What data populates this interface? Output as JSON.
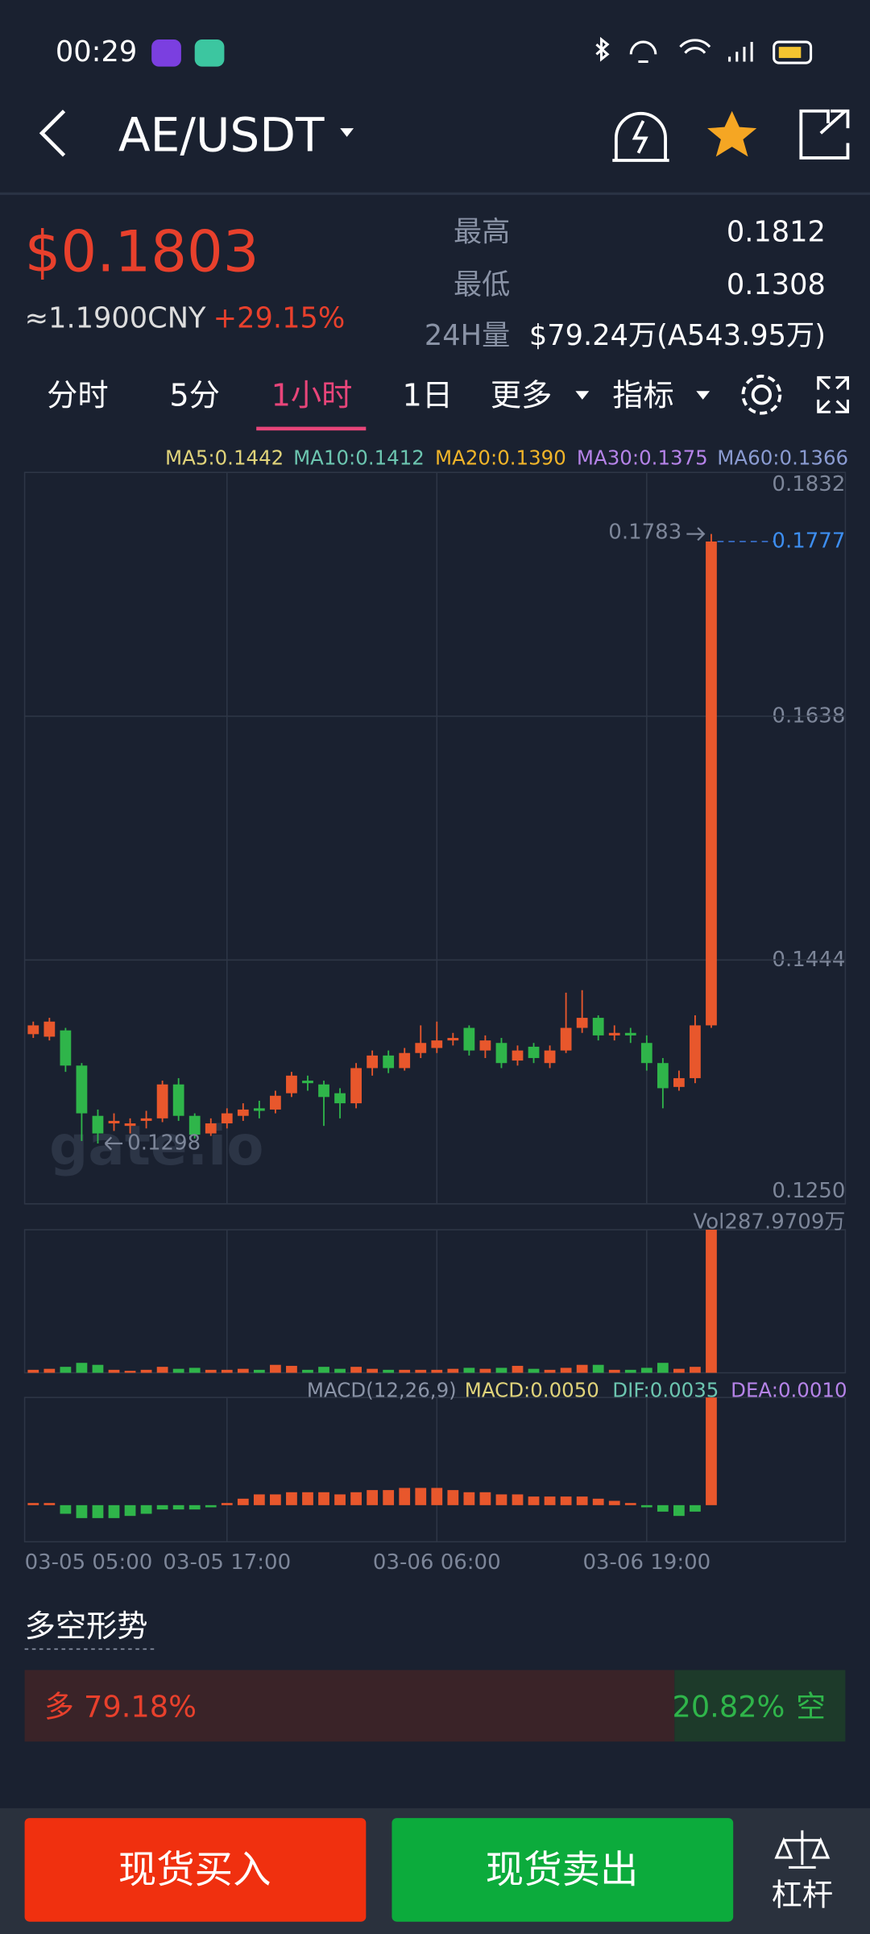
{
  "status_bar": {
    "time": "00:29"
  },
  "header": {
    "pair": "AE/USDT"
  },
  "ticker": {
    "price": "$0.1803",
    "cny": "≈1.1900CNY",
    "change": "+29.15%",
    "high_label": "最高",
    "high": "0.1812",
    "low_label": "最低",
    "low": "0.1308",
    "vol_label": "24H量",
    "vol": "$79.24万(A543.95万)"
  },
  "tabs": [
    "分时",
    "5分",
    "1小时",
    "1日",
    "更多",
    "指标"
  ],
  "chart_data": {
    "type": "candlestick",
    "ma_labels": [
      {
        "text": "MA5:0.1442",
        "color": "#e0d37a"
      },
      {
        "text": "MA10:0.1412",
        "color": "#6cc5b0"
      },
      {
        "text": "MA20:0.1390",
        "color": "#f0b429"
      },
      {
        "text": "MA30:0.1375",
        "color": "#b583e8"
      },
      {
        "text": "MA60:0.1366",
        "color": "#8a9bd1"
      }
    ],
    "categories": [
      "03-05 05:00",
      null,
      null,
      null,
      null,
      null,
      null,
      null,
      null,
      null,
      null,
      null,
      "03-05 17:00",
      null,
      null,
      null,
      null,
      null,
      null,
      null,
      null,
      null,
      null,
      null,
      null,
      "03-06 06:00",
      null,
      null,
      null,
      null,
      null,
      null,
      null,
      null,
      null,
      null,
      null,
      null,
      "03-06 19:00",
      null,
      null,
      null,
      null
    ],
    "open": [
      0.1385,
      0.1383,
      0.1388,
      0.136,
      0.132,
      0.1314,
      0.1312,
      0.1316,
      0.1318,
      0.1345,
      0.132,
      0.1306,
      0.1314,
      0.132,
      0.1326,
      0.1325,
      0.1338,
      0.1348,
      0.1345,
      0.1338,
      0.133,
      0.1358,
      0.1368,
      0.1358,
      0.137,
      0.1374,
      0.138,
      0.139,
      0.1372,
      0.1378,
      0.1364,
      0.1375,
      0.1362,
      0.1372,
      0.139,
      0.1398,
      0.1384,
      0.1386,
      0.1378,
      0.1362,
      0.1343,
      0.135,
      0.1392
    ],
    "high": [
      0.1395,
      0.1398,
      0.139,
      0.1362,
      0.1325,
      0.1322,
      0.1318,
      0.1324,
      0.1348,
      0.135,
      0.1322,
      0.1318,
      0.1326,
      0.133,
      0.1332,
      0.134,
      0.1355,
      0.1352,
      0.1348,
      0.1342,
      0.1362,
      0.1372,
      0.1372,
      0.1374,
      0.1392,
      0.1395,
      0.1386,
      0.1392,
      0.1384,
      0.1382,
      0.1376,
      0.1378,
      0.1376,
      0.1418,
      0.142,
      0.14,
      0.1392,
      0.139,
      0.1384,
      0.1366,
      0.1356,
      0.14,
      0.1783
    ],
    "low": [
      0.1382,
      0.138,
      0.1355,
      0.13,
      0.1298,
      0.1308,
      0.1306,
      0.131,
      0.1315,
      0.1316,
      0.1302,
      0.1304,
      0.131,
      0.1316,
      0.1318,
      0.1322,
      0.1335,
      0.134,
      0.1312,
      0.1318,
      0.1326,
      0.1352,
      0.1354,
      0.1356,
      0.1366,
      0.137,
      0.1376,
      0.1368,
      0.1366,
      0.1358,
      0.136,
      0.1362,
      0.1358,
      0.137,
      0.1386,
      0.138,
      0.138,
      0.1378,
      0.1356,
      0.1326,
      0.134,
      0.1346,
      0.139
    ],
    "close": [
      0.1392,
      0.1395,
      0.136,
      0.1322,
      0.1306,
      0.1316,
      0.1314,
      0.1318,
      0.1345,
      0.132,
      0.1305,
      0.1314,
      0.1322,
      0.1325,
      0.1324,
      0.1336,
      0.1352,
      0.1346,
      0.1335,
      0.133,
      0.1358,
      0.1368,
      0.1358,
      0.137,
      0.1378,
      0.138,
      0.1382,
      0.1372,
      0.138,
      0.1362,
      0.1372,
      0.1366,
      0.1372,
      0.139,
      0.1398,
      0.1384,
      0.1386,
      0.1384,
      0.1362,
      0.1342,
      0.135,
      0.1392,
      0.1777
    ],
    "up_color": "#e8572c",
    "down_color": "#2fb54a",
    "ylim": [
      0.125,
      0.1832
    ],
    "yticks": [
      0.1832,
      0.1638,
      0.1444,
      {
        "value": 0.125,
        "label": "0.1250"
      }
    ],
    "grid": true,
    "high_annotation": 0.1783,
    "low_annotation": 0.1298,
    "last_price": 0.1777,
    "watermark": "gate.io",
    "volume": {
      "label": "Vol287.9709万",
      "ylim": [
        0,
        287.9709
      ],
      "values": [
        6,
        8,
        12,
        20,
        16,
        6,
        4,
        6,
        12,
        8,
        10,
        6,
        6,
        8,
        6,
        16,
        14,
        6,
        12,
        8,
        12,
        8,
        6,
        6,
        6,
        6,
        8,
        10,
        8,
        10,
        14,
        8,
        6,
        10,
        16,
        16,
        6,
        6,
        10,
        20,
        8,
        12,
        287.9709
      ]
    },
    "macd": {
      "labels": [
        {
          "text": "MACD(12,26,9)",
          "color": "#8a93a6"
        },
        {
          "text": "MACD:0.0050",
          "color": "#e0d37a"
        },
        {
          "text": "DIF:0.0035",
          "color": "#6cc5b0"
        },
        {
          "text": "DEA:0.0010",
          "color": "#b583e8"
        }
      ],
      "ylim": [
        -0.0017,
        0.005
      ],
      "values": [
        0.0001,
        0.0001,
        -0.0004,
        -0.0006,
        -0.0006,
        -0.0006,
        -0.0005,
        -0.0004,
        -0.0002,
        -0.0002,
        -0.0002,
        -0.0001,
        0.0001,
        0.0003,
        0.0005,
        0.0005,
        0.0006,
        0.0006,
        0.0006,
        0.0005,
        0.0006,
        0.0007,
        0.0007,
        0.0008,
        0.0008,
        0.0008,
        0.0007,
        0.0006,
        0.0006,
        0.0005,
        0.0005,
        0.0004,
        0.0004,
        0.0004,
        0.0004,
        0.0003,
        0.0002,
        0.0001,
        -0.0001,
        -0.0003,
        -0.0005,
        -0.0003,
        0.005
      ]
    }
  },
  "sentiment": {
    "title": "多空形势",
    "long_label": "多",
    "long": 79.18,
    "long_value_label": "79.18%",
    "short": 20.82,
    "short_value_label": "20.82%",
    "short_label": "空"
  },
  "buttons": {
    "buy": "现货买入",
    "sell": "现货卖出",
    "margin": "杠杆"
  }
}
